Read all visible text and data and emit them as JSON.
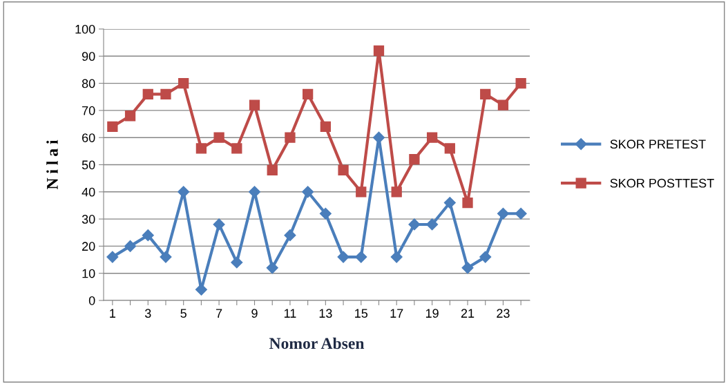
{
  "chart_data": {
    "type": "line",
    "xlabel": "Nomor Absen",
    "ylabel": "N i l a i",
    "categories": [
      "1",
      null,
      "3",
      null,
      "5",
      null,
      "7",
      null,
      "9",
      null,
      "11",
      null,
      "13",
      null,
      "15",
      null,
      "17",
      null,
      "19",
      null,
      "21",
      null,
      "23",
      null
    ],
    "series": [
      {
        "name": "SKOR PRETEST",
        "color": "#4a7ebb",
        "marker": "diamond",
        "values": [
          16,
          20,
          24,
          16,
          40,
          4,
          28,
          14,
          40,
          12,
          24,
          40,
          32,
          16,
          16,
          60,
          16,
          28,
          28,
          36,
          12,
          16,
          32,
          32
        ]
      },
      {
        "name": "SKOR POSTTEST",
        "color": "#be4b48",
        "marker": "square",
        "values": [
          64,
          68,
          76,
          76,
          80,
          56,
          60,
          56,
          72,
          48,
          60,
          76,
          64,
          48,
          40,
          92,
          40,
          52,
          60,
          56,
          36,
          76,
          72,
          80
        ]
      }
    ],
    "ylim": [
      0,
      100
    ],
    "yticks": [
      0,
      10,
      20,
      30,
      40,
      50,
      60,
      70,
      80,
      90,
      100
    ],
    "grid": "y",
    "legend": "right",
    "line_style": "solid"
  }
}
